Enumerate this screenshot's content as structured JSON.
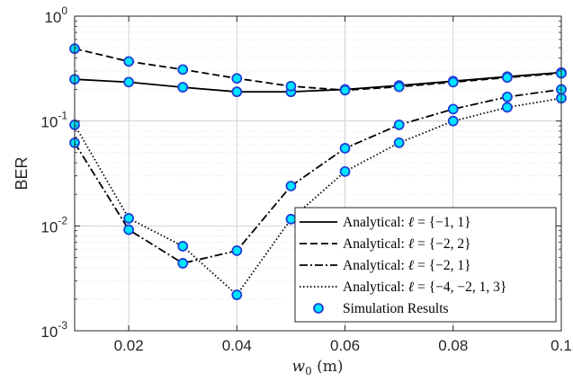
{
  "chart_data": {
    "type": "line",
    "title": "",
    "xlabel": "w_0 (m)",
    "ylabel": "BER",
    "xscale": "linear",
    "yscale": "log",
    "xlim": [
      0.01,
      0.1
    ],
    "ylim": [
      0.001,
      1
    ],
    "grid": true,
    "legend_position": "bottom-right",
    "x_ticks": [
      0.02,
      0.04,
      0.06,
      0.08,
      0.1
    ],
    "x_tick_labels": [
      "0.02",
      "0.04",
      "0.06",
      "0.08",
      "0.1"
    ],
    "y_ticks": [
      {
        "value": 1,
        "base": "10",
        "exp": "0"
      },
      {
        "value": 0.1,
        "base": "10",
        "exp": "-1"
      },
      {
        "value": 0.01,
        "base": "10",
        "exp": "-2"
      },
      {
        "value": 0.001,
        "base": "10",
        "exp": "-3"
      }
    ],
    "x": [
      0.01,
      0.02,
      0.03,
      0.04,
      0.05,
      0.06,
      0.07,
      0.08,
      0.09,
      0.1
    ],
    "series": [
      {
        "name": "Analytical: ℓ = {−1, 1}",
        "dash": "solid",
        "values": [
          0.25,
          0.235,
          0.21,
          0.19,
          0.19,
          0.2,
          0.218,
          0.24,
          0.265,
          0.29
        ]
      },
      {
        "name": "Analytical: ℓ = {−2, 2}",
        "dash": "dashed",
        "values": [
          0.49,
          0.37,
          0.31,
          0.255,
          0.215,
          0.197,
          0.212,
          0.235,
          0.26,
          0.285
        ]
      },
      {
        "name": "Analytical: ℓ = {−2, 1}",
        "dash": "dashdot",
        "values": [
          0.062,
          0.0092,
          0.0044,
          0.0058,
          0.024,
          0.055,
          0.092,
          0.13,
          0.17,
          0.2
        ]
      },
      {
        "name": "Analytical: ℓ = {−4, −2, 1, 3}",
        "dash": "dotted",
        "values": [
          0.092,
          0.0118,
          0.0064,
          0.0022,
          0.0116,
          0.033,
          0.062,
          0.1,
          0.135,
          0.165
        ]
      }
    ],
    "markers_label": "Simulation Results",
    "marker_fill": "#00e5ff",
    "marker_edge": "#1f3fd6",
    "line_color": "#000000",
    "grid_color": "#e3e3e3",
    "legend": [
      {
        "prefix": "Analytical:  ",
        "var": "ℓ",
        "set": " = {−1, 1}"
      },
      {
        "prefix": "Analytical:  ",
        "var": "ℓ",
        "set": " = {−2, 2}"
      },
      {
        "prefix": "Analytical:  ",
        "var": "ℓ",
        "set": " = {−2, 1}"
      },
      {
        "prefix": "Analytical:  ",
        "var": "ℓ",
        "set": " = {−4, −2, 1, 3}"
      }
    ]
  }
}
